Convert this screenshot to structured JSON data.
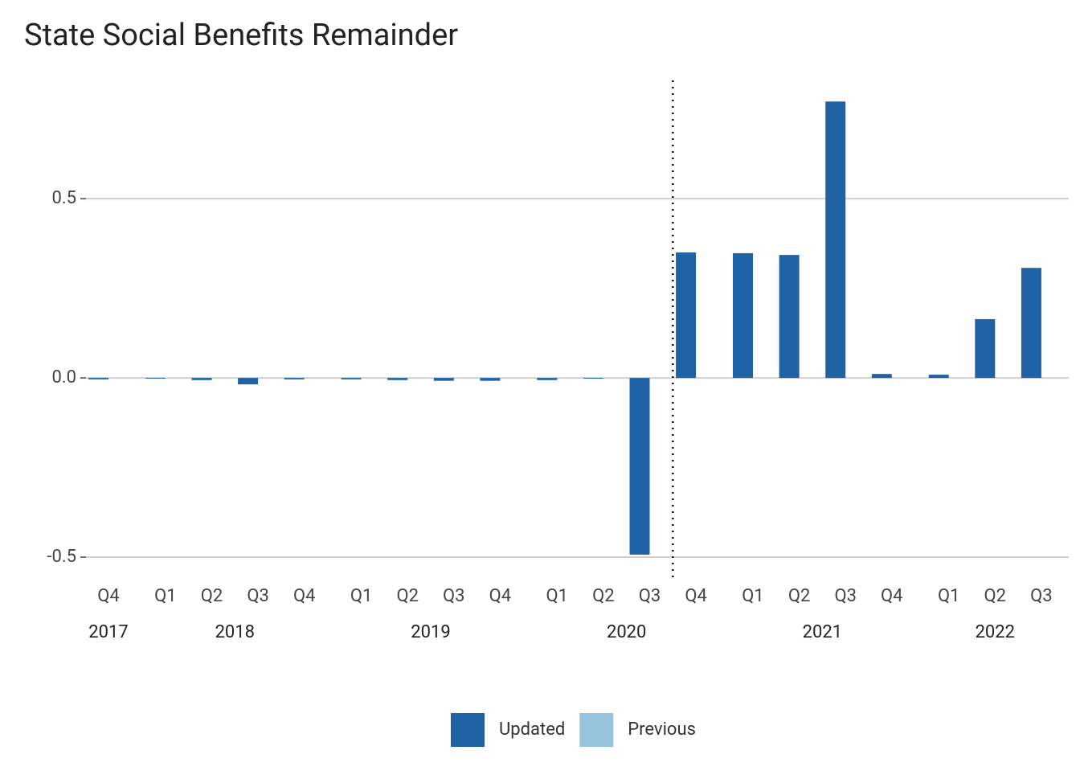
{
  "chart_data": {
    "type": "bar",
    "title": "State Social Benefits Remainder",
    "categories": [
      "Q4",
      "Q1",
      "Q2",
      "Q3",
      "Q4",
      "Q1",
      "Q2",
      "Q3",
      "Q4",
      "Q1",
      "Q2",
      "Q3",
      "Q4",
      "Q1",
      "Q2",
      "Q3",
      "Q4",
      "Q1",
      "Q2",
      "Q3"
    ],
    "groups": [
      {
        "label": "2017",
        "categories": [
          "Q4"
        ]
      },
      {
        "label": "2018",
        "categories": [
          "Q1",
          "Q2",
          "Q3",
          "Q4"
        ]
      },
      {
        "label": "2019",
        "categories": [
          "Q1",
          "Q2",
          "Q3",
          "Q4"
        ]
      },
      {
        "label": "2020",
        "categories": [
          "Q1",
          "Q2",
          "Q3",
          "Q4"
        ]
      },
      {
        "label": "2021",
        "categories": [
          "Q1",
          "Q2",
          "Q3",
          "Q4"
        ]
      },
      {
        "label": "2022",
        "categories": [
          "Q1",
          "Q2",
          "Q3"
        ]
      }
    ],
    "series": [
      {
        "name": "Updated",
        "color": "#1f63a6",
        "values": [
          -0.004,
          -0.002,
          -0.006,
          -0.018,
          -0.004,
          -0.004,
          -0.006,
          -0.008,
          -0.008,
          -0.006,
          -0.002,
          -0.493,
          0.35,
          0.348,
          0.343,
          0.771,
          0.011,
          0.009,
          0.164,
          0.307
        ]
      },
      {
        "name": "Previous",
        "color": "#97c4dd",
        "values": [
          null,
          null,
          null,
          null,
          null,
          null,
          null,
          null,
          null,
          null,
          null,
          null,
          null,
          null,
          null,
          null,
          null,
          null,
          null,
          null
        ]
      }
    ],
    "ylim": [
      -0.556,
      0.83
    ],
    "yticks": [
      -0.5,
      {
        "value": 0,
        "label": "0.0"
      },
      0.5
    ],
    "grid": true,
    "vline_at": 11.5,
    "legend": "bottom"
  }
}
